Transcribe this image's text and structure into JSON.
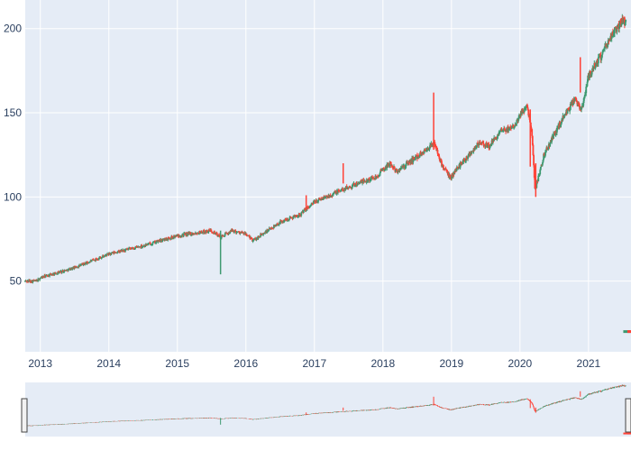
{
  "chart_data": {
    "type": "candlestick",
    "title": "",
    "xlabel": "",
    "ylabel": "",
    "x_range": [
      2012.78,
      2021.62
    ],
    "ylim": [
      8,
      217
    ],
    "x_ticks": [
      {
        "value": 2013,
        "label": "2013"
      },
      {
        "value": 2014,
        "label": "2014"
      },
      {
        "value": 2015,
        "label": "2015"
      },
      {
        "value": 2016,
        "label": "2016"
      },
      {
        "value": 2017,
        "label": "2017"
      },
      {
        "value": 2018,
        "label": "2018"
      },
      {
        "value": 2019,
        "label": "2019"
      },
      {
        "value": 2020,
        "label": "2020"
      },
      {
        "value": 2021,
        "label": "2021"
      }
    ],
    "y_ticks": [
      {
        "value": 50,
        "label": "50"
      },
      {
        "value": 100,
        "label": "100"
      },
      {
        "value": 150,
        "label": "150"
      },
      {
        "value": 200,
        "label": "200"
      }
    ],
    "increasing_color": "#3d9970",
    "decreasing_color": "#ff4136",
    "grid": true,
    "rangeslider": true,
    "trend_points": [
      {
        "x": 2012.78,
        "y": 50
      },
      {
        "x": 2012.95,
        "y": 50
      },
      {
        "x": 2013.0,
        "y": 52
      },
      {
        "x": 2013.5,
        "y": 58
      },
      {
        "x": 2014.0,
        "y": 66
      },
      {
        "x": 2014.5,
        "y": 71
      },
      {
        "x": 2015.0,
        "y": 77
      },
      {
        "x": 2015.5,
        "y": 80
      },
      {
        "x": 2015.63,
        "y": 76
      },
      {
        "x": 2015.8,
        "y": 80
      },
      {
        "x": 2016.0,
        "y": 78
      },
      {
        "x": 2016.1,
        "y": 74
      },
      {
        "x": 2016.5,
        "y": 85
      },
      {
        "x": 2016.8,
        "y": 90
      },
      {
        "x": 2017.0,
        "y": 97
      },
      {
        "x": 2017.5,
        "y": 106
      },
      {
        "x": 2017.9,
        "y": 112
      },
      {
        "x": 2018.1,
        "y": 120
      },
      {
        "x": 2018.2,
        "y": 115
      },
      {
        "x": 2018.5,
        "y": 124
      },
      {
        "x": 2018.75,
        "y": 132
      },
      {
        "x": 2018.85,
        "y": 120
      },
      {
        "x": 2018.98,
        "y": 111
      },
      {
        "x": 2019.1,
        "y": 118
      },
      {
        "x": 2019.4,
        "y": 132
      },
      {
        "x": 2019.55,
        "y": 130
      },
      {
        "x": 2019.7,
        "y": 138
      },
      {
        "x": 2019.9,
        "y": 142
      },
      {
        "x": 2020.1,
        "y": 155
      },
      {
        "x": 2020.17,
        "y": 140
      },
      {
        "x": 2020.22,
        "y": 104
      },
      {
        "x": 2020.35,
        "y": 125
      },
      {
        "x": 2020.6,
        "y": 145
      },
      {
        "x": 2020.8,
        "y": 158
      },
      {
        "x": 2020.9,
        "y": 152
      },
      {
        "x": 2021.0,
        "y": 172
      },
      {
        "x": 2021.2,
        "y": 185
      },
      {
        "x": 2021.4,
        "y": 200
      },
      {
        "x": 2021.5,
        "y": 205
      },
      {
        "x": 2021.55,
        "y": 204
      }
    ],
    "spikes": [
      {
        "x": 2015.63,
        "low": 54,
        "high": 80,
        "color": "#3d9970"
      },
      {
        "x": 2016.88,
        "low": 92,
        "high": 101,
        "color": "#ff4136"
      },
      {
        "x": 2017.42,
        "low": 108,
        "high": 120,
        "color": "#ff4136"
      },
      {
        "x": 2018.74,
        "low": 128,
        "high": 162,
        "color": "#ff4136"
      },
      {
        "x": 2020.15,
        "low": 118,
        "high": 152,
        "color": "#ff4136"
      },
      {
        "x": 2020.23,
        "low": 100,
        "high": 120,
        "color": "#ff4136"
      },
      {
        "x": 2020.88,
        "low": 162,
        "high": 183,
        "color": "#ff4136"
      }
    ],
    "tail_points": [
      {
        "x": 2021.56,
        "y": 20
      },
      {
        "x": 2021.62,
        "y": 20
      }
    ]
  }
}
